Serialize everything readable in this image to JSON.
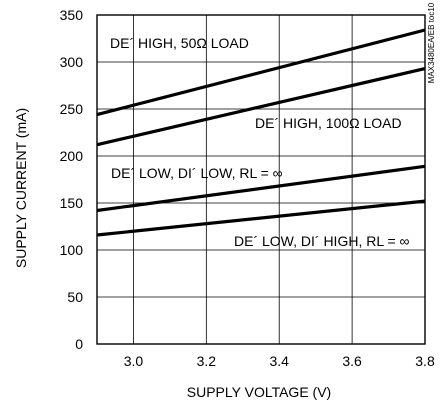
{
  "chart_data": {
    "type": "line",
    "xlabel": "SUPPLY VOLTAGE (V)",
    "ylabel": "SUPPLY CURRENT (mA)",
    "xlim": [
      2.9,
      3.8
    ],
    "ylim": [
      0,
      350
    ],
    "x_ticks": [
      "3.0",
      "3.2",
      "3.4",
      "3.6",
      "3.8"
    ],
    "y_ticks": [
      "0",
      "50",
      "100",
      "150",
      "200",
      "250",
      "300",
      "350"
    ],
    "grid": true,
    "legend": "none",
    "annotation": "MAX3480EA/EB toc10",
    "series": [
      {
        "name": "DE´ HIGH, 50Ω LOAD",
        "x": [
          2.9,
          3.8
        ],
        "y": [
          244,
          334
        ]
      },
      {
        "name": "DE´ HIGH, 100Ω LOAD",
        "x": [
          2.9,
          3.8
        ],
        "y": [
          212,
          293
        ]
      },
      {
        "name": "DE´ LOW, DI´ LOW, RL = ∞",
        "x": [
          2.9,
          3.8
        ],
        "y": [
          142,
          189
        ]
      },
      {
        "name": "DE´ LOW, DI´ HIGH, RL = ∞",
        "x": [
          2.9,
          3.8
        ],
        "y": [
          116,
          152
        ]
      }
    ]
  }
}
